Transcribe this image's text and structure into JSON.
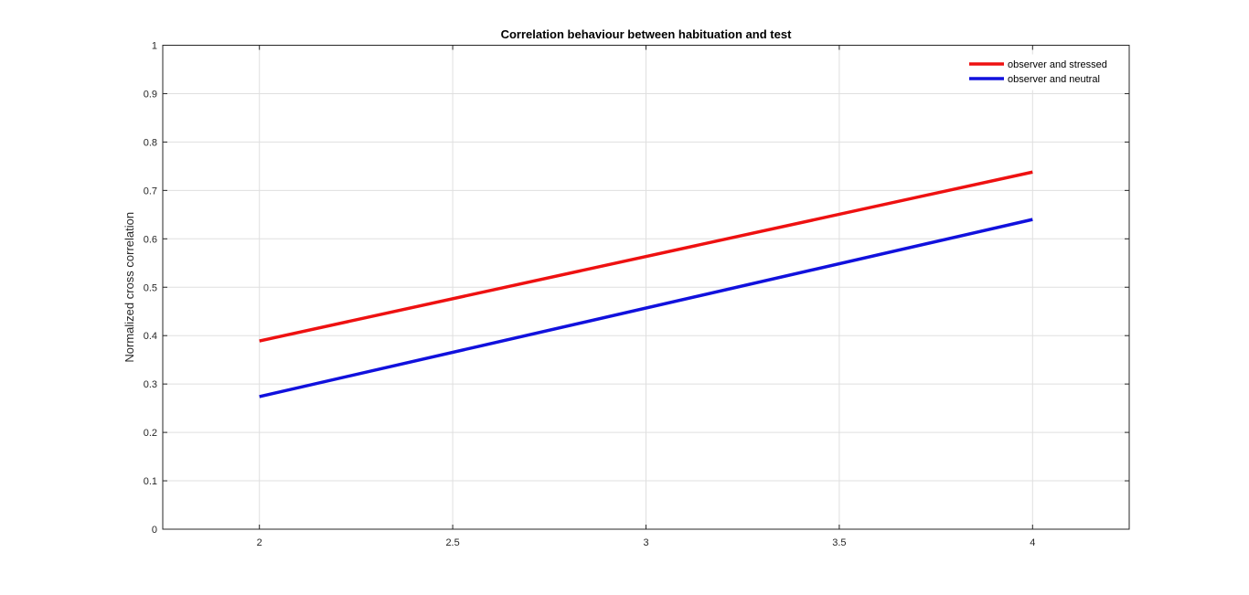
{
  "chart_data": {
    "type": "line",
    "title": "Correlation behaviour between habituation and test",
    "xlabel": "",
    "ylabel": "Normalized cross correlation",
    "xlim": [
      1.75,
      4.25
    ],
    "ylim": [
      0,
      1
    ],
    "x_ticks": [
      2,
      2.5,
      3,
      3.5,
      4
    ],
    "x_tick_labels": [
      "2",
      "2.5",
      "3",
      "3.5",
      "4"
    ],
    "y_ticks": [
      0,
      0.1,
      0.2,
      0.3,
      0.4,
      0.5,
      0.6,
      0.7,
      0.8,
      0.9,
      1
    ],
    "y_tick_labels": [
      "0",
      "0.1",
      "0.2",
      "0.3",
      "0.4",
      "0.5",
      "0.6",
      "0.7",
      "0.8",
      "0.9",
      "1"
    ],
    "grid": true,
    "legend_position": "top-right",
    "series": [
      {
        "name": "observer and stressed",
        "color": "#ee1111",
        "x": [
          2,
          4
        ],
        "y": [
          0.389,
          0.738
        ]
      },
      {
        "name": "observer and neutral",
        "color": "#1111dd",
        "x": [
          2,
          4
        ],
        "y": [
          0.274,
          0.64
        ]
      }
    ]
  }
}
